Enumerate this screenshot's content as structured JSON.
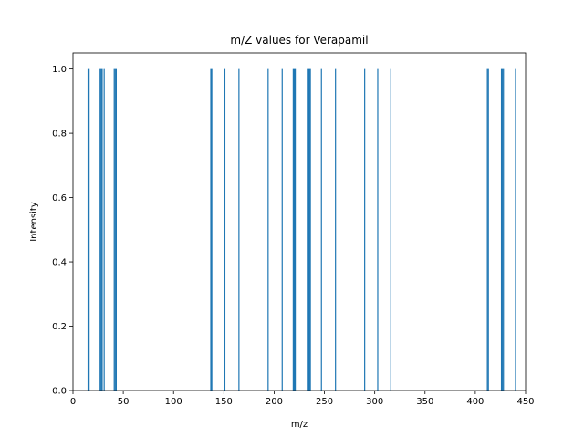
{
  "chart_data": {
    "type": "bar",
    "title": "m/Z values for Verapamil",
    "xlabel": "m/z",
    "ylabel": "Intensity",
    "xlim": [
      0,
      450
    ],
    "ylim": [
      0,
      1.05
    ],
    "x_ticks": [
      0,
      50,
      100,
      150,
      200,
      250,
      300,
      350,
      400,
      450
    ],
    "y_ticks": [
      0.0,
      0.2,
      0.4,
      0.6,
      0.8,
      1.0
    ],
    "grid": false,
    "bar_color": "#1f77b4",
    "series": [
      {
        "x": [
          15,
          16,
          27,
          28,
          29,
          31,
          41,
          42,
          43,
          137,
          138,
          151,
          165,
          194,
          208,
          219,
          220,
          221,
          233,
          234,
          235,
          236,
          247,
          261,
          290,
          303,
          316,
          412,
          413,
          426,
          427,
          428,
          440
        ],
        "values": [
          1,
          1,
          1,
          1,
          1,
          1,
          1,
          1,
          1,
          1,
          1,
          1,
          1,
          1,
          1,
          1,
          1,
          1,
          1,
          1,
          1,
          1,
          1,
          1,
          1,
          1,
          1,
          1,
          1,
          1,
          1,
          1,
          1
        ]
      }
    ]
  }
}
